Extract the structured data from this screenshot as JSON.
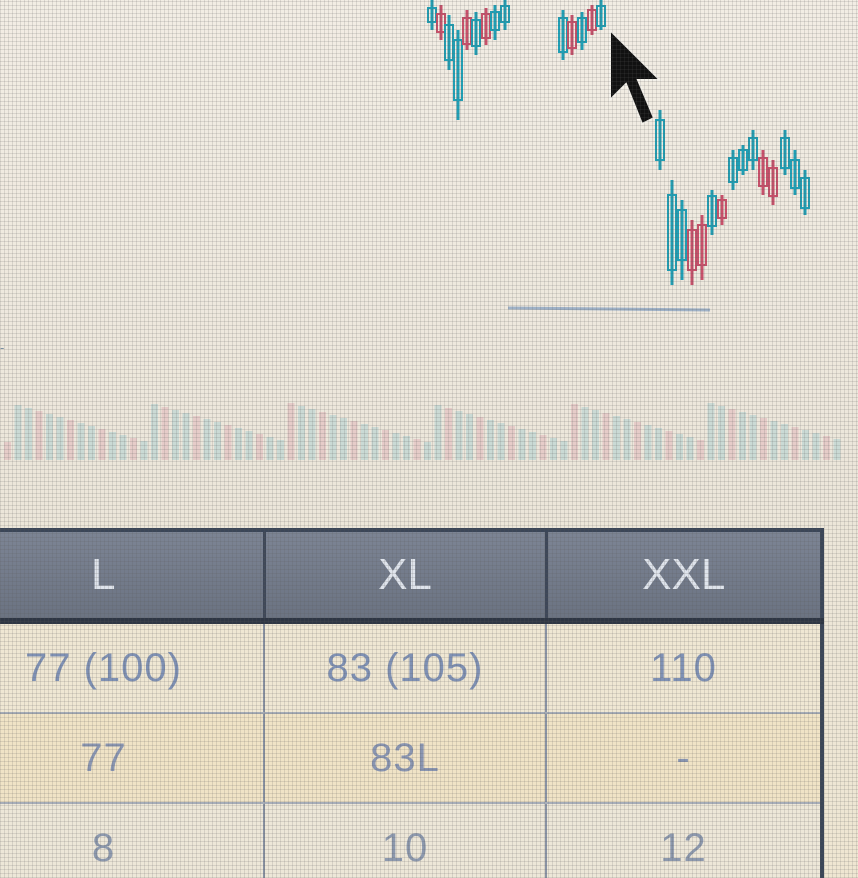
{
  "chart": {
    "axis_stub": "-",
    "colors": {
      "up": "#1f9fb5",
      "down": "#c8506a",
      "volume_up": "#74b9c6",
      "volume_down": "#d48a9a"
    }
  },
  "cursor": {
    "icon": "mouse-pointer-icon"
  },
  "table": {
    "headers": [
      "L",
      "XL",
      "XXL"
    ],
    "rows": [
      [
        "77 (100)",
        "83 (105)",
        "110"
      ],
      [
        "77",
        "83L",
        "-"
      ],
      [
        "8",
        "10",
        "12"
      ]
    ]
  }
}
